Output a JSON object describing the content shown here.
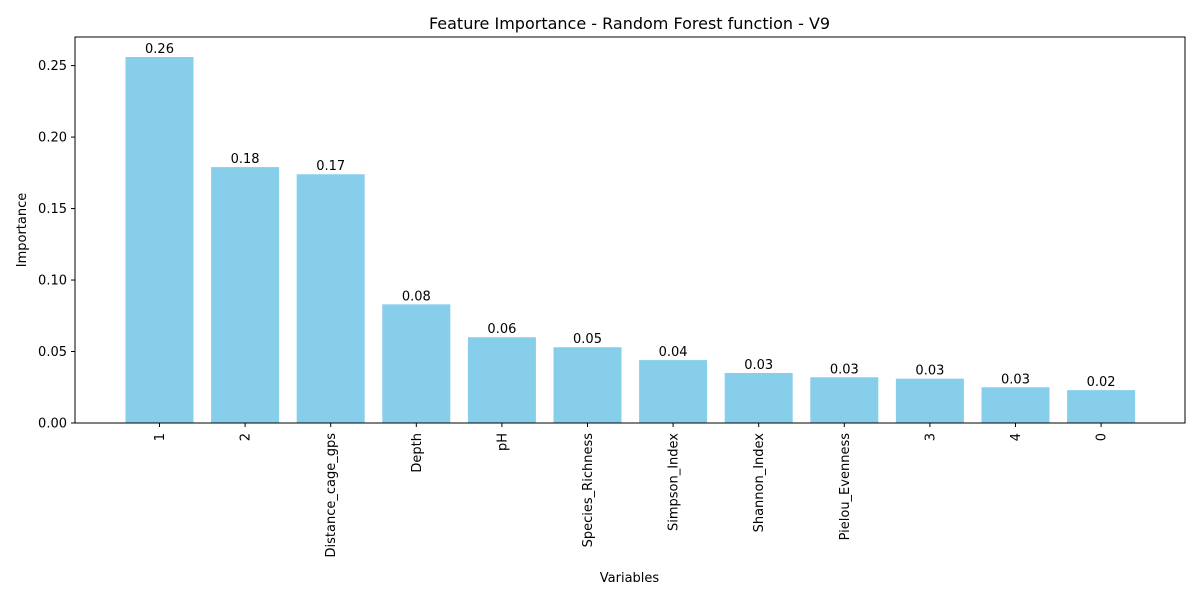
{
  "chart_data": {
    "type": "bar",
    "title": "Feature Importance - Random Forest function - V9",
    "xlabel": "Variables",
    "ylabel": "Importance",
    "categories": [
      "1",
      "2",
      "Distance_cage_gps",
      "Depth",
      "pH",
      "Species_Richness",
      "Simpson_Index",
      "Shannon_Index",
      "Pielou_Evenness",
      "3",
      "4",
      "0"
    ],
    "values": [
      0.256,
      0.179,
      0.174,
      0.083,
      0.06,
      0.053,
      0.044,
      0.035,
      0.032,
      0.031,
      0.025,
      0.023
    ],
    "value_labels": [
      "0.26",
      "0.18",
      "0.17",
      "0.08",
      "0.06",
      "0.05",
      "0.04",
      "0.03",
      "0.03",
      "0.03",
      "0.03",
      "0.02"
    ],
    "ylim": [
      0,
      0.27
    ],
    "yticks": [
      0.0,
      0.05,
      0.1,
      0.15,
      0.2,
      0.25
    ],
    "ytick_labels": [
      "0.00",
      "0.05",
      "0.10",
      "0.15",
      "0.20",
      "0.25"
    ],
    "grid": false,
    "bar_color": "#87ceeb"
  }
}
